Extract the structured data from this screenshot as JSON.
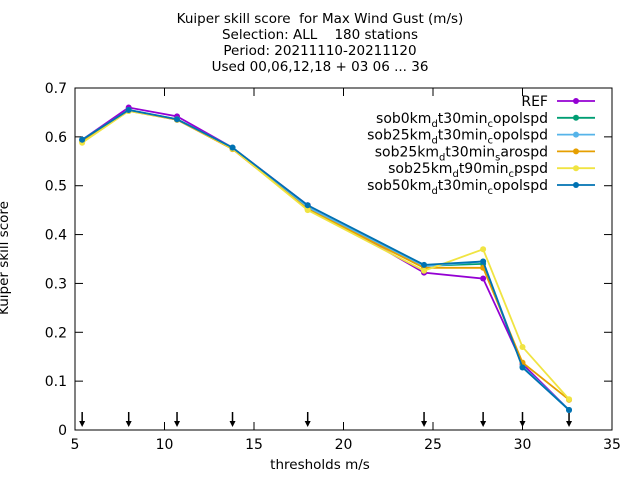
{
  "chart_data": {
    "type": "line",
    "title": [
      "Kuiper skill score  for Max Wind Gust (m/s)",
      "Selection: ALL    180 stations",
      "Period: 20211110-20211120",
      "Used 00,06,12,18 + 03 06 ... 36"
    ],
    "xlabel": "thresholds m/s",
    "ylabel": "Kuiper skill score",
    "xlim": [
      5,
      35
    ],
    "ylim": [
      0,
      0.7
    ],
    "xticks": [
      5,
      10,
      15,
      20,
      25,
      30,
      35
    ],
    "yticks": [
      0,
      0.1,
      0.2,
      0.3,
      0.4,
      0.5,
      0.6,
      0.7
    ],
    "x": [
      5.4,
      8,
      10.7,
      13.8,
      18,
      24.5,
      27.8,
      30,
      32.6
    ],
    "arrows_x": [
      5.4,
      8,
      10.7,
      13.8,
      18,
      24.5,
      27.8,
      30,
      32.6
    ],
    "grid": false,
    "legend_position": "top-right",
    "series": [
      {
        "name": "REF",
        "color": "#9400d3",
        "values": [
          0.594,
          0.66,
          0.642,
          0.578,
          0.46,
          0.322,
          0.31,
          0.135,
          0.041
        ]
      },
      {
        "name": "sob0km_dt30min_copolspd",
        "color": "#009e73",
        "values": [
          0.594,
          0.655,
          0.635,
          0.578,
          0.455,
          0.336,
          0.34,
          0.13,
          0.041
        ]
      },
      {
        "name": "sob25km_dt30min_copolspd",
        "color": "#56b4e9",
        "values": [
          0.594,
          0.655,
          0.636,
          0.578,
          0.456,
          0.335,
          0.345,
          0.13,
          0.041
        ]
      },
      {
        "name": "sob25km_dt30min_sarospd",
        "color": "#e69f00",
        "values": [
          0.59,
          0.653,
          0.635,
          0.575,
          0.452,
          0.332,
          0.332,
          0.138,
          0.062
        ]
      },
      {
        "name": "sob25km_dt90min_cpspd",
        "color": "#f0e442",
        "values": [
          0.588,
          0.653,
          0.636,
          0.576,
          0.45,
          0.326,
          0.37,
          0.17,
          0.063
        ]
      },
      {
        "name": "sob50km_dt30min_copolspd",
        "color": "#0072b2",
        "values": [
          0.594,
          0.655,
          0.636,
          0.578,
          0.46,
          0.338,
          0.345,
          0.128,
          0.041
        ]
      }
    ],
    "legend": [
      {
        "parts": [
          [
            "REF",
            ""
          ]
        ]
      },
      {
        "parts": [
          [
            "sob0km",
            ""
          ],
          [
            "d",
            "sub"
          ],
          [
            "t30min",
            ""
          ],
          [
            "c",
            "sub"
          ],
          [
            "opolspd",
            ""
          ]
        ]
      },
      {
        "parts": [
          [
            "sob25km",
            ""
          ],
          [
            "d",
            "sub"
          ],
          [
            "t30min",
            ""
          ],
          [
            "c",
            "sub"
          ],
          [
            "opolspd",
            ""
          ]
        ]
      },
      {
        "parts": [
          [
            "sob25km",
            ""
          ],
          [
            "d",
            "sub"
          ],
          [
            "t30min",
            ""
          ],
          [
            "s",
            "sub"
          ],
          [
            "arospd",
            ""
          ]
        ]
      },
      {
        "parts": [
          [
            "sob25km",
            ""
          ],
          [
            "d",
            "sub"
          ],
          [
            "t90min",
            ""
          ],
          [
            "c",
            "sub"
          ],
          [
            "pspd",
            ""
          ]
        ]
      },
      {
        "parts": [
          [
            "sob50km",
            ""
          ],
          [
            "d",
            "sub"
          ],
          [
            "t30min",
            ""
          ],
          [
            "c",
            "sub"
          ],
          [
            "opolspd",
            ""
          ]
        ]
      }
    ]
  }
}
